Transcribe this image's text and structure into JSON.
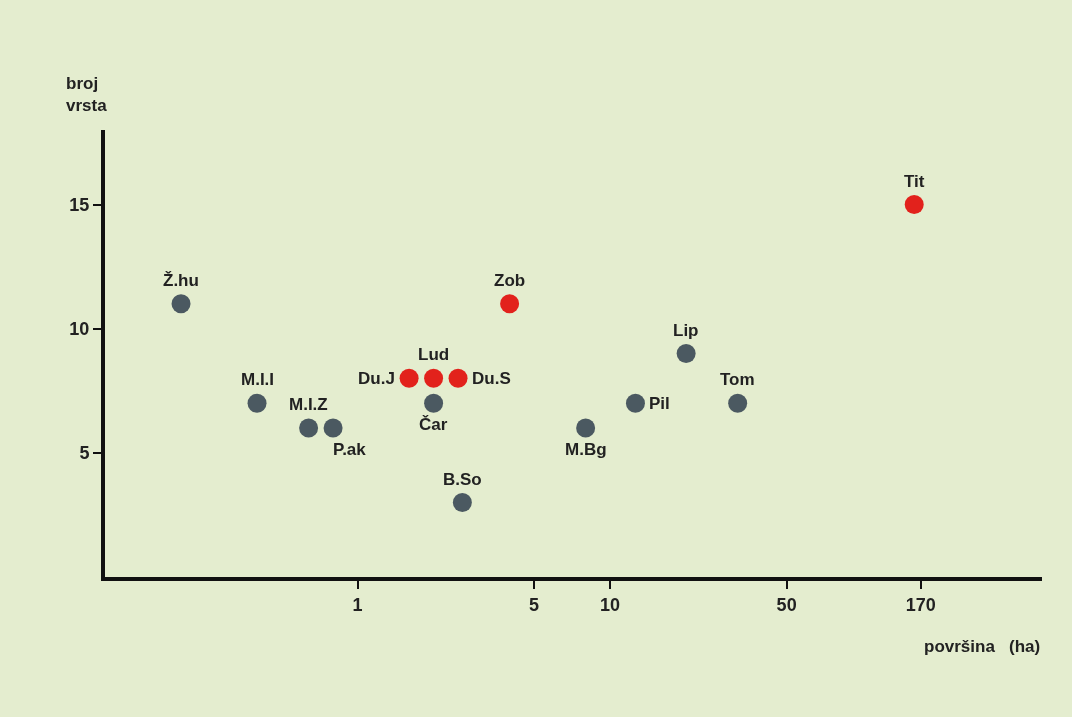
{
  "chart_data": {
    "type": "scatter",
    "xlabel": "površina   (ha)",
    "ylabel": "broj\nvrsta",
    "log": "x",
    "xlim": [
      0.1,
      513
    ],
    "xticks": [
      1,
      5,
      10,
      50,
      170
    ],
    "ylim": [
      0,
      18
    ],
    "yticks": [
      5,
      10,
      15
    ],
    "grid": false,
    "marker": "circle",
    "series": [
      {
        "color": "#4b5961",
        "x": [
          0.2,
          0.4,
          0.64,
          0.8,
          2.0,
          2.6,
          8,
          12.6,
          20,
          32
        ],
        "values": [
          11,
          7,
          6,
          6,
          7,
          3,
          6,
          7,
          9,
          7
        ]
      },
      {
        "color": "#e2221c",
        "x": [
          1.6,
          2.0,
          2.5,
          4.0,
          160
        ],
        "values": [
          8,
          8,
          8,
          11,
          15
        ]
      }
    ],
    "annotations": [
      {
        "text": "Ž.hu",
        "x": 0.2,
        "y": 11
      },
      {
        "text": "M.I.I",
        "x": 0.4,
        "y": 7
      },
      {
        "text": "M.I.Z",
        "x": 0.64,
        "y": 6
      },
      {
        "text": "P.ak",
        "x": 0.8,
        "y": 6
      },
      {
        "text": "Du.J",
        "x": 1.6,
        "y": 8
      },
      {
        "text": "Lud",
        "x": 2.0,
        "y": 8
      },
      {
        "text": "Du.S",
        "x": 2.5,
        "y": 8
      },
      {
        "text": "Čar",
        "x": 2.0,
        "y": 7
      },
      {
        "text": "B.So",
        "x": 2.6,
        "y": 3
      },
      {
        "text": "Zob",
        "x": 4.0,
        "y": 11
      },
      {
        "text": "M.Bg",
        "x": 8,
        "y": 6
      },
      {
        "text": "Pil",
        "x": 12.6,
        "y": 7
      },
      {
        "text": "Lip",
        "x": 20,
        "y": 9
      },
      {
        "text": "Tom",
        "x": 32,
        "y": 7
      },
      {
        "text": "Tit",
        "x": 160,
        "y": 15
      }
    ]
  }
}
